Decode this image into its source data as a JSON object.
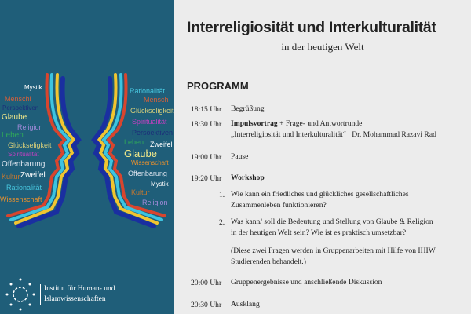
{
  "left_panel": {
    "background": "#1f5e79",
    "words_left": [
      {
        "text": "Mystik",
        "color": "#ffffff"
      },
      {
        "text": "Menschl",
        "color": "#d5603a"
      },
      {
        "text": "Perspektiven",
        "color": "#1c2f7a"
      },
      {
        "text": "Glaube",
        "color": "#f1e88a"
      },
      {
        "text": "Religion",
        "color": "#a08ad8"
      },
      {
        "text": "Leben",
        "color": "#2fa85a"
      },
      {
        "text": "Glückseligkeit",
        "color": "#d8cf7a"
      },
      {
        "text": "Spiritualität",
        "color": "#c040c0"
      },
      {
        "text": "Offenbarung",
        "color": "#dfe6f0"
      },
      {
        "text": "Kultur",
        "color": "#c8782e"
      },
      {
        "text": "Zweifel",
        "color": "#ffffff"
      },
      {
        "text": "Rationalität",
        "color": "#48c8e0"
      },
      {
        "text": "Wissenschaft",
        "color": "#e8902e"
      }
    ],
    "words_right": [
      {
        "text": "Rationalität",
        "color": "#48c8e0"
      },
      {
        "text": "Mensch",
        "color": "#d5603a"
      },
      {
        "text": "Glückseligkeit",
        "color": "#d8cf7a"
      },
      {
        "text": "Spiritualität",
        "color": "#c040c0"
      },
      {
        "text": "Persoektiven",
        "color": "#1c2f7a"
      },
      {
        "text": "Leben",
        "color": "#2fa85a"
      },
      {
        "text": "Zweifel",
        "color": "#ffffff"
      },
      {
        "text": "Glaube",
        "color": "#f1e88a"
      },
      {
        "text": "Wissenschaft",
        "color": "#e8902e"
      },
      {
        "text": "Offenbarung",
        "color": "#dfe6f0"
      },
      {
        "text": "Mystik",
        "color": "#ffffff"
      },
      {
        "text": "Kultur",
        "color": "#c8782e"
      },
      {
        "text": "Religion",
        "color": "#a08ad8"
      }
    ],
    "institute": [
      "Institut für Human- und",
      "Islamwissenschaften"
    ]
  },
  "header": {
    "title": "Interreligiosität und Interkulturalität",
    "subtitle": "in der heutigen Welt"
  },
  "program": {
    "heading": "PROGRAMM",
    "items": [
      {
        "time": "18:15 Uhr",
        "text": "Begrüßung"
      },
      {
        "time": "18:30 Uhr",
        "bold": "Impulsvortrag",
        "text": " + Frage- und Antwortrunde",
        "line2": "„Interreligiosität und Interkulturalität“_ Dr. Mohammad Razavi Rad"
      },
      {
        "time": "19:00 Uhr",
        "text": "Pause"
      },
      {
        "time": "19:20 Uhr",
        "bold": "Workshop"
      },
      {
        "time": "20:00 Uhr",
        "text": "Gruppenergebnisse und anschließende Diskussion"
      },
      {
        "time": "20:30 Uhr",
        "text": "Ausklang"
      }
    ],
    "questions": [
      {
        "num": "1.",
        "line1": "Wie kann ein friedliches und glückliches gesellschaftliches",
        "line2": "Zusammenleben funktionieren?"
      },
      {
        "num": "2.",
        "line1": "Was kann/ soll die Bedeutung und Stellung von Glaube & Religion",
        "line2": "in der heutigen Welt sein? Wie ist es praktisch umsetzbar?"
      }
    ],
    "note": [
      "(Diese zwei Fragen werden in Gruppenarbeiten mit Hilfe von IHIW",
      "Studierenden behandelt.)"
    ]
  }
}
